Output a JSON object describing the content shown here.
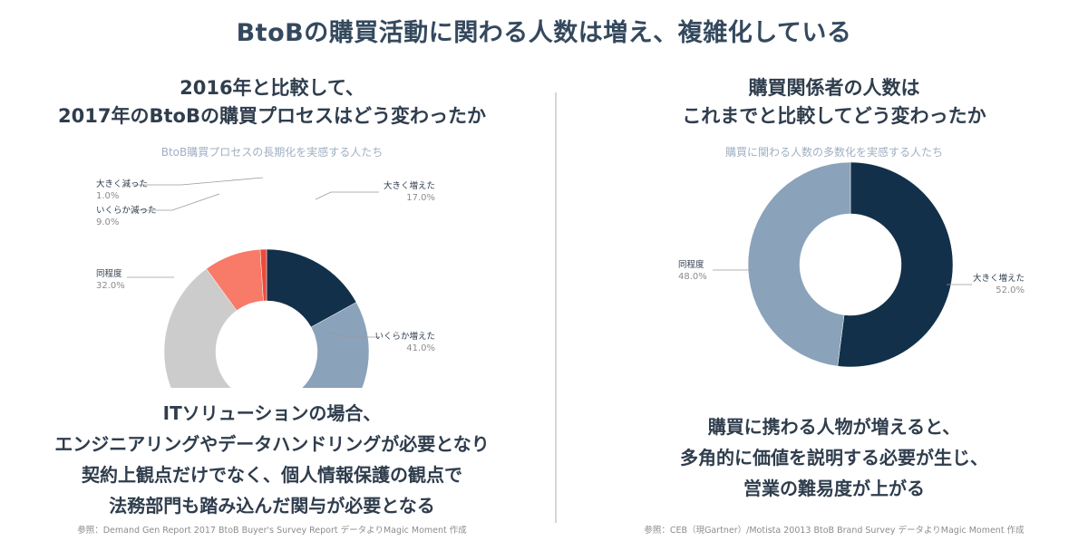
{
  "title": "BtoBの購買活動に関わる人数は増え、複雑化している",
  "left": {
    "heading": [
      "2016年と比較して、",
      "2017年のBtoBの購買プロセスはどう変わったか"
    ],
    "subtitle": "BtoB購買プロセスの長期化を実感する人たち",
    "callout": [
      "ITソリューションの場合、",
      "エンジニアリングやデータハンドリングが必要となり",
      "契約上観点だけでなく、個人情報保護の観点で",
      "法務部門も踏み込んだ関与が必要となる"
    ],
    "source": "参照：Demand Gen Report 2017 BtoB Buyer's Survey Report データよりMagic Moment 作成"
  },
  "right": {
    "heading": [
      "購買関係者の人数は",
      "これまでと比較してどう変わったか"
    ],
    "subtitle": "購買に関わる人数の多数化を実感する人たち",
    "callout": [
      "購買に携わる人物が増えると、",
      "多角的に価値を説明する必要が生じ、",
      "営業の難易度が上がる"
    ],
    "source": "参照：CEB（現Gartner）/Motista 20013 BtoB Brand Survey データよりMagic Moment 作成"
  },
  "chart_data": [
    {
      "type": "pie",
      "categories": [
        "大きく増えた",
        "いくらか増えた",
        "同程度",
        "いくらか減った",
        "大きく減った"
      ],
      "values": [
        17.0,
        41.0,
        32.0,
        9.0,
        1.0
      ],
      "value_labels": [
        "17.0%",
        "41.0%",
        "32.0%",
        "9.0%",
        "1.0%"
      ],
      "colors": [
        "#12304a",
        "#8aa2ba",
        "#cccccc",
        "#f87a69",
        "#ee4a3a"
      ],
      "title": "BtoB購買プロセスの長期化を実感する人たち"
    },
    {
      "type": "pie",
      "categories": [
        "大きく増えた",
        "同程度"
      ],
      "values": [
        52.0,
        48.0
      ],
      "value_labels": [
        "52.0%",
        "48.0%"
      ],
      "colors": [
        "#12304a",
        "#8aa2ba"
      ],
      "title": "購買に関わる人数の多数化を実感する人たち"
    }
  ]
}
